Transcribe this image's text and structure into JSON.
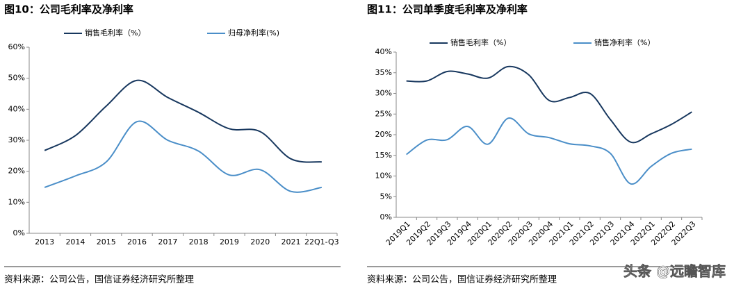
{
  "chart_data": [
    {
      "type": "line",
      "title": "图10：公司毛利率及净利率",
      "categories": [
        "2013",
        "2014",
        "2015",
        "2016",
        "2017",
        "2018",
        "2019",
        "2020",
        "2021",
        "22Q1-Q3"
      ],
      "series": [
        {
          "name": "销售毛利率（%）",
          "color": "#17375e",
          "values": [
            26.7,
            31.5,
            41,
            49.3,
            43.8,
            39,
            33.7,
            32.8,
            24,
            23
          ]
        },
        {
          "name": "归母净利率(%)",
          "color": "#4a8ec8",
          "values": [
            14.8,
            18.5,
            23,
            36,
            30,
            26.5,
            18.8,
            20.5,
            13.5,
            14.8
          ]
        }
      ],
      "ylim": [
        0,
        60
      ],
      "yticks": [
        {
          "value": 0,
          "label": "0%"
        },
        {
          "value": 10,
          "label": "10%"
        },
        {
          "value": 20,
          "label": "20%"
        },
        {
          "value": 30,
          "label": "30%"
        },
        {
          "value": 40,
          "label": "40%"
        },
        {
          "value": 50,
          "label": "50%"
        },
        {
          "value": 60,
          "label": "60%"
        }
      ],
      "source": "资料来源：公司公告，国信证券经济研究所整理"
    },
    {
      "type": "line",
      "title": "图11：公司单季度毛利率及净利率",
      "categories": [
        "2019Q1",
        "2019Q2",
        "2019Q3",
        "2019Q4",
        "2020Q1",
        "2020Q2",
        "2020Q3",
        "2020Q4",
        "2021Q1",
        "2021Q2",
        "2021Q3",
        "2021Q4",
        "2022Q1",
        "2022Q2",
        "2022Q3"
      ],
      "series": [
        {
          "name": "销售毛利率（%）",
          "color": "#17375e",
          "values": [
            33,
            33,
            35.3,
            34.7,
            33.7,
            36.5,
            34.5,
            28.3,
            29,
            30,
            23.7,
            18.2,
            20.2,
            22.5,
            25.5
          ]
        },
        {
          "name": "销售净利率（%）",
          "color": "#4a8ec8",
          "values": [
            15.2,
            18.7,
            18.8,
            22,
            17.7,
            24,
            20.2,
            19.3,
            17.8,
            17.3,
            15.5,
            8.1,
            12.3,
            15.5,
            16.5
          ]
        }
      ],
      "ylim": [
        0,
        40
      ],
      "yticks": [
        {
          "value": 0,
          "label": "0%"
        },
        {
          "value": 5,
          "label": "5%"
        },
        {
          "value": 10,
          "label": "10%"
        },
        {
          "value": 15,
          "label": "15%"
        },
        {
          "value": 20,
          "label": "20%"
        },
        {
          "value": 25,
          "label": "25%"
        },
        {
          "value": 30,
          "label": "30%"
        },
        {
          "value": 35,
          "label": "35%"
        },
        {
          "value": 40,
          "label": "40%"
        }
      ],
      "source": "资料来源：公司公告，国信证券经济研究所整理"
    }
  ],
  "watermark": "头条 @远瞻智库"
}
